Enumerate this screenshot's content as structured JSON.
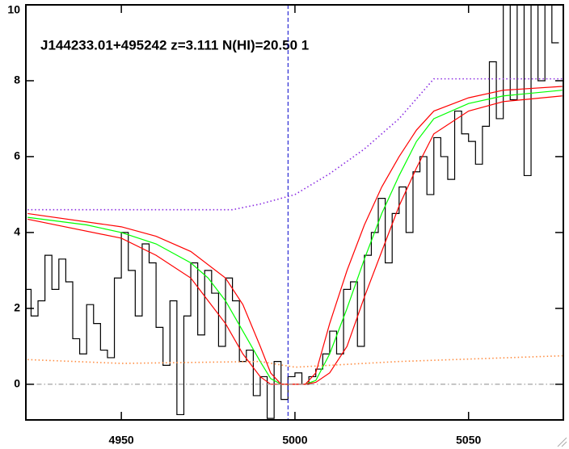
{
  "chart_data": {
    "type": "line",
    "title": "J144233.01+495242 z=3.111 N(HI)=20.50 1",
    "xlim": [
      4922.5,
      5077.3
    ],
    "ylim": [
      -0.94,
      10
    ],
    "xticks": [
      4950,
      5000,
      5050
    ],
    "yticks": [
      0,
      2,
      4,
      6,
      8,
      10
    ],
    "vline": 4998,
    "series": [
      {
        "color": "#000000",
        "step": true,
        "dash": "solid",
        "x": [
          4923,
          4925,
          4927,
          4929,
          4931,
          4933,
          4935,
          4937,
          4939,
          4941,
          4943,
          4945,
          4947,
          4949,
          4951,
          4953,
          4955,
          4957,
          4959,
          4961,
          4963,
          4965,
          4967,
          4969,
          4971,
          4973,
          4975,
          4977,
          4979,
          4981,
          4983,
          4985,
          4987,
          4989,
          4991,
          4993,
          4995,
          4997,
          4999,
          5001,
          5003,
          5005,
          5007,
          5009,
          5011,
          5013,
          5015,
          5017,
          5019,
          5021,
          5023,
          5025,
          5027,
          5029,
          5031,
          5033,
          5035,
          5037,
          5039,
          5041,
          5043,
          5045,
          5047,
          5049,
          5051,
          5053,
          5055,
          5057,
          5059,
          5061,
          5063,
          5065,
          5067,
          5069,
          5071,
          5073,
          5075
        ],
        "values": [
          2.5,
          1.8,
          2.2,
          3.4,
          2.5,
          3.3,
          2.7,
          1.2,
          0.8,
          2.1,
          1.6,
          0.9,
          0.7,
          2.8,
          4.0,
          3.0,
          1.8,
          3.7,
          3.2,
          1.5,
          0.5,
          2.2,
          -0.8,
          1.8,
          3.2,
          1.3,
          3.0,
          2.4,
          1.0,
          2.8,
          2.2,
          0.6,
          0.9,
          -0.3,
          0.2,
          -0.9,
          0.6,
          -0.4,
          0.2,
          0.3,
          0.0,
          0.2,
          0.4,
          0.8,
          1.4,
          0.8,
          2.5,
          2.7,
          1.0,
          3.4,
          4.0,
          4.9,
          3.2,
          4.5,
          5.2,
          4.0,
          5.6,
          6.0,
          5.0,
          6.5,
          6.0,
          5.4,
          7.2,
          6.6,
          6.4,
          5.8,
          6.8,
          8.5,
          7.0,
          10,
          7.5,
          10,
          5.5,
          10,
          8.0,
          10,
          9.0
        ]
      },
      {
        "color": "#00ff00",
        "step": false,
        "dash": "solid",
        "x": [
          4923,
          4940,
          4950,
          4960,
          4970,
          4975,
          4980,
          4985,
          4990,
          4993,
          4996,
          5003,
          5006,
          5010,
          5015,
          5020,
          5025,
          5030,
          5035,
          5040,
          5050,
          5060,
          5077
        ],
        "values": [
          4.4,
          4.2,
          4.0,
          3.7,
          3.2,
          2.8,
          2.2,
          1.4,
          0.6,
          0.15,
          0,
          0,
          0.1,
          0.8,
          2.0,
          3.3,
          4.5,
          5.5,
          6.4,
          7.0,
          7.4,
          7.6,
          7.75
        ]
      },
      {
        "color": "#ff0000",
        "step": false,
        "dash": "solid",
        "x": [
          4923,
          4950,
          4960,
          4970,
          4980,
          4985,
          4990,
          4993,
          4996,
          5003,
          5006,
          5010,
          5015,
          5020,
          5025,
          5030,
          5035,
          5040,
          5050,
          5060,
          5077
        ],
        "values": [
          4.5,
          4.15,
          3.9,
          3.5,
          2.8,
          2.1,
          1.0,
          0.3,
          0,
          0,
          0.3,
          1.6,
          3.0,
          4.2,
          5.2,
          6.0,
          6.7,
          7.2,
          7.55,
          7.75,
          7.85
        ]
      },
      {
        "color": "#ff0000",
        "step": false,
        "dash": "solid",
        "x": [
          4923,
          4950,
          4960,
          4970,
          4980,
          4985,
          4990,
          4993,
          5003,
          5006,
          5010,
          5015,
          5020,
          5025,
          5030,
          5035,
          5040,
          5050,
          5060,
          5077
        ],
        "values": [
          4.35,
          3.85,
          3.4,
          2.8,
          1.6,
          0.8,
          0.2,
          0,
          0,
          0.05,
          0.3,
          1.0,
          2.3,
          3.5,
          4.7,
          5.7,
          6.6,
          7.2,
          7.45,
          7.6
        ]
      },
      {
        "color": "#8a2be2",
        "step": false,
        "dash": "dot",
        "x": [
          4923,
          4982,
          4990,
          5000,
          5010,
          5020,
          5030,
          5040,
          5077
        ],
        "values": [
          4.6,
          4.6,
          4.75,
          5.0,
          5.55,
          6.2,
          7.0,
          8.05,
          8.05
        ]
      },
      {
        "color": "#ff8c40",
        "step": false,
        "dash": "dot",
        "x": [
          4923,
          4950,
          4990,
          5000,
          5030,
          5077
        ],
        "values": [
          0.65,
          0.55,
          0.6,
          0.45,
          0.6,
          0.75
        ]
      },
      {
        "color": "#999999",
        "step": false,
        "dash": "dashdot",
        "x": [
          4922.5,
          5077.3
        ],
        "values": [
          0,
          0
        ]
      }
    ]
  }
}
